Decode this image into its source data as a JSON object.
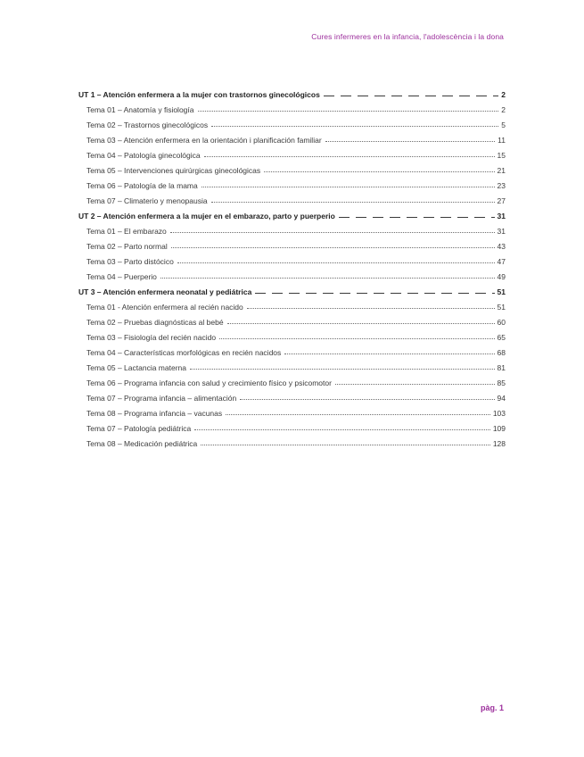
{
  "page": {
    "header": "Cures infermeres en la infancia, l'adolescència i la dona",
    "footer": "pàg. 1",
    "accent_color": "#9c2f9c",
    "text_color": "#3b3b3b"
  },
  "toc": {
    "entries": [
      {
        "level": 1,
        "label": "UT 1 – Atención enfermera a la mujer con trastornos ginecológicos",
        "page": "2"
      },
      {
        "level": 2,
        "label": "Tema 01 – Anatomía y fisiología",
        "page": "2"
      },
      {
        "level": 2,
        "label": "Tema 02 – Trastornos ginecológicos",
        "page": "5"
      },
      {
        "level": 2,
        "label": "Tema 03 – Atención enfermera en la orientación i planificación familiar",
        "page": "11"
      },
      {
        "level": 2,
        "label": "Tema 04 – Patología ginecológica",
        "page": "15"
      },
      {
        "level": 2,
        "label": "Tema 05 – Intervenciones quirúrgicas ginecológicas",
        "page": "21"
      },
      {
        "level": 2,
        "label": "Tema 06 – Patología de la mama",
        "page": "23"
      },
      {
        "level": 2,
        "label": "Tema 07 – Climaterio y menopausia",
        "page": "27"
      },
      {
        "level": 1,
        "label": "UT 2 – Atención enfermera a la mujer en el embarazo, parto y puerperio",
        "page": "31"
      },
      {
        "level": 2,
        "label": "Tema 01 – El embarazo",
        "page": "31"
      },
      {
        "level": 2,
        "label": "Tema 02 – Parto normal",
        "page": "43"
      },
      {
        "level": 2,
        "label": "Tema 03 – Parto distócico",
        "page": "47"
      },
      {
        "level": 2,
        "label": "Tema 04 – Puerperio",
        "page": "49"
      },
      {
        "level": 1,
        "label": "UT 3 – Atención enfermera neonatal y pediátrica",
        "page": "51"
      },
      {
        "level": 2,
        "label": "Tema 01 - Atención enfermera al recién nacido",
        "page": "51"
      },
      {
        "level": 2,
        "label": "Tema 02 – Pruebas diagnósticas al bebé",
        "page": "60"
      },
      {
        "level": 2,
        "label": "Tema 03 – Fisiología del recién nacido",
        "page": "65"
      },
      {
        "level": 2,
        "label": "Tema 04 – Características morfológicas en recién nacidos",
        "page": "68"
      },
      {
        "level": 2,
        "label": "Tema 05 – Lactancia materna",
        "page": "81"
      },
      {
        "level": 2,
        "label": "Tema 06 – Programa infancia con salud y crecimiento físico y psicomotor",
        "page": "85"
      },
      {
        "level": 2,
        "label": "Tema 07 – Programa infancia – alimentación",
        "page": "94"
      },
      {
        "level": 2,
        "label": "Tema 08 – Programa infancia – vacunas",
        "page": "103"
      },
      {
        "level": 2,
        "label": "Tema 07 – Patología pediátrica",
        "page": "109"
      },
      {
        "level": 2,
        "label": "Tema 08 – Medicación pediátrica",
        "page": "128"
      }
    ]
  }
}
